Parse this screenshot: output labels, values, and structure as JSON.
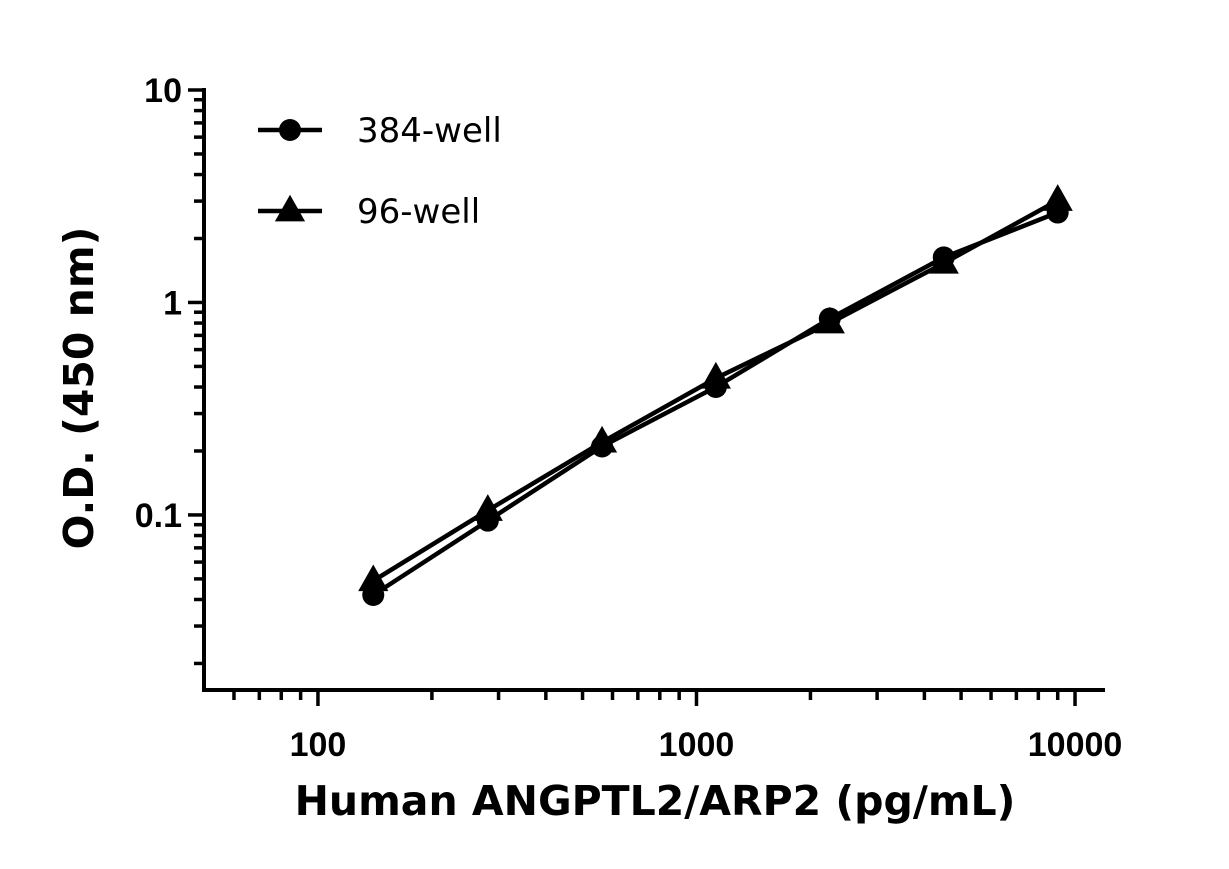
{
  "chart_data": {
    "type": "line",
    "xscale": "log",
    "yscale": "log",
    "xlabel": "Human ANGPTL2/ARP2 (pg/mL)",
    "ylabel": "O.D. (450 nm)",
    "xlim": [
      50,
      12000
    ],
    "ylim": [
      0.015,
      10
    ],
    "x_ticks": [
      {
        "value": 100,
        "label": "100"
      },
      {
        "value": 1000,
        "label": "1000"
      },
      {
        "value": 10000,
        "label": "10000"
      }
    ],
    "y_ticks": [
      {
        "value": 0.1,
        "label": "0.1"
      },
      {
        "value": 1,
        "label": "1"
      },
      {
        "value": 10,
        "label": "10"
      }
    ],
    "x": [
      140,
      281,
      563,
      1125,
      2250,
      4500,
      9000
    ],
    "series": [
      {
        "name": "384-well",
        "marker": "circle",
        "values": [
          0.042,
          0.094,
          0.21,
          0.4,
          0.84,
          1.63,
          2.65
        ]
      },
      {
        "name": "96-well",
        "marker": "triangle",
        "values": [
          0.049,
          0.105,
          0.22,
          0.44,
          0.8,
          1.53,
          3.02
        ]
      }
    ],
    "legend": "top-left"
  }
}
